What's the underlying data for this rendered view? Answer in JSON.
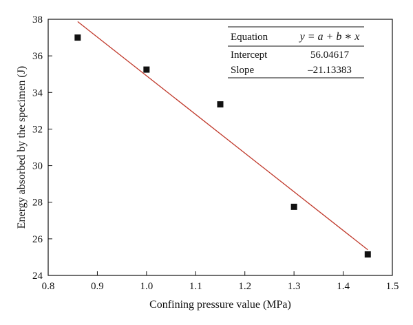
{
  "chart_data": {
    "type": "scatter",
    "xlabel": "Confining pressure value (MPa)",
    "ylabel": "Energy absorbed by the specimen (J)",
    "xlim": [
      0.8,
      1.5
    ],
    "ylim": [
      24,
      38
    ],
    "x_ticks": [
      0.8,
      0.9,
      1.0,
      1.1,
      1.2,
      1.3,
      1.4,
      1.5
    ],
    "x_tick_labels": [
      "0.8",
      "0.9",
      "1.0",
      "1.1",
      "1.2",
      "1.3",
      "1.4",
      "1.5"
    ],
    "y_ticks": [
      24,
      26,
      28,
      30,
      32,
      34,
      36,
      38
    ],
    "y_tick_labels": [
      "24",
      "26",
      "28",
      "30",
      "32",
      "34",
      "36",
      "38"
    ],
    "grid": false,
    "series": [
      {
        "points": [
          {
            "x": 0.86,
            "y": 37.0
          },
          {
            "x": 1.0,
            "y": 35.25
          },
          {
            "x": 1.15,
            "y": 33.35
          },
          {
            "x": 1.3,
            "y": 27.75
          },
          {
            "x": 1.45,
            "y": 25.15
          }
        ],
        "marker": "square",
        "color": "#111111"
      }
    ],
    "fit_line": {
      "intercept": 56.04617,
      "slope": -21.13383,
      "x_range": [
        0.86,
        1.45
      ],
      "color": "#c0392b"
    },
    "fit_table": {
      "placement": "top-right",
      "rows": [
        {
          "label": "Equation",
          "value": "y = a + b ∗ x"
        },
        {
          "label": "Intercept",
          "value": "56.04617"
        },
        {
          "label": "Slope",
          "value": "–21.13383"
        }
      ]
    }
  }
}
